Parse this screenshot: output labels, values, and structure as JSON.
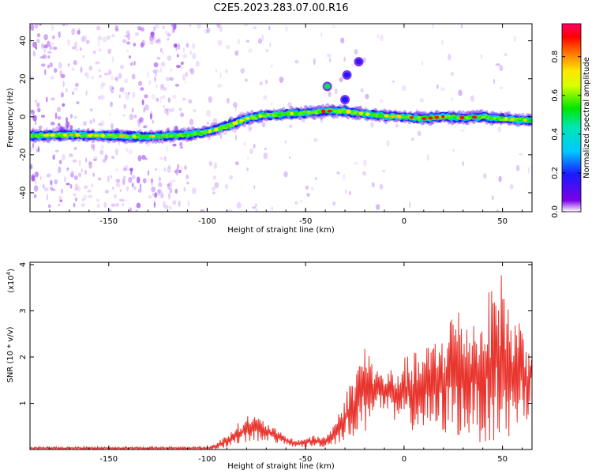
{
  "title": "C2E5.2023.283.07.00.R16",
  "chart_data": [
    {
      "type": "heatmap",
      "xlabel": "Height of straight line (km)",
      "ylabel": "Frequency (Hz)",
      "xlim": [
        -190,
        65
      ],
      "ylim": [
        -50,
        49
      ],
      "xticks": [
        -150,
        -100,
        -50,
        0,
        50
      ],
      "yticks": [
        -40,
        -20,
        0,
        20,
        40
      ],
      "colorbar": {
        "label": "Normalized spectral amplitude",
        "range": [
          0,
          0.97
        ],
        "ticks": [
          "0.0",
          "0.2",
          "0.4",
          "0.6",
          "0.8"
        ],
        "tick_values": [
          0,
          0.2,
          0.4,
          0.6,
          0.8
        ]
      },
      "ridge": [
        {
          "x": -190,
          "y": -10
        },
        {
          "x": -170,
          "y": -9.5
        },
        {
          "x": -150,
          "y": -10
        },
        {
          "x": -130,
          "y": -10.5
        },
        {
          "x": -110,
          "y": -9.5
        },
        {
          "x": -100,
          "y": -8
        },
        {
          "x": -90,
          "y": -5
        },
        {
          "x": -80,
          "y": -1
        },
        {
          "x": -70,
          "y": 1
        },
        {
          "x": -60,
          "y": 1.5
        },
        {
          "x": -50,
          "y": 2
        },
        {
          "x": -40,
          "y": 3
        },
        {
          "x": -30,
          "y": 3
        },
        {
          "x": -20,
          "y": 1.5
        },
        {
          "x": -10,
          "y": 0.5
        },
        {
          "x": 0,
          "y": 0
        },
        {
          "x": 10,
          "y": -1
        },
        {
          "x": 20,
          "y": 0
        },
        {
          "x": 30,
          "y": -0.5
        },
        {
          "x": 40,
          "y": 0
        },
        {
          "x": 50,
          "y": -1
        },
        {
          "x": 65,
          "y": -2
        }
      ],
      "isolated_blobs": [
        {
          "x": -39,
          "y": 16,
          "value": 0.5
        },
        {
          "x": -29,
          "y": 22,
          "value": 0.2
        },
        {
          "x": -23,
          "y": 29,
          "value": 0.15
        },
        {
          "x": -30,
          "y": 9,
          "value": 0.2
        }
      ]
    },
    {
      "type": "line",
      "xlabel": "Height of straight line (km)",
      "ylabel": "SNR (10 * v/v)",
      "yscale_label": "(x10",
      "yscale_exp": "4",
      "yscale_close": ")",
      "xlim": [
        -190,
        65
      ],
      "ylim": [
        0,
        4.05
      ],
      "xticks": [
        -150,
        -100,
        -50,
        0,
        50
      ],
      "yticks": [
        1,
        2,
        3,
        4
      ],
      "color": "#e8352e",
      "envelope": [
        {
          "x": -190,
          "lo": 0.0,
          "hi": 0.06
        },
        {
          "x": -100,
          "lo": 0.0,
          "hi": 0.06
        },
        {
          "x": -95,
          "lo": 0.0,
          "hi": 0.15
        },
        {
          "x": -90,
          "lo": 0.05,
          "hi": 0.35
        },
        {
          "x": -85,
          "lo": 0.1,
          "hi": 0.55
        },
        {
          "x": -78,
          "lo": 0.15,
          "hi": 0.8
        },
        {
          "x": -70,
          "lo": 0.2,
          "hi": 0.6
        },
        {
          "x": -62,
          "lo": 0.1,
          "hi": 0.35
        },
        {
          "x": -55,
          "lo": 0.05,
          "hi": 0.2
        },
        {
          "x": -48,
          "lo": 0.05,
          "hi": 0.3
        },
        {
          "x": -40,
          "lo": 0.05,
          "hi": 0.3
        },
        {
          "x": -35,
          "lo": 0.1,
          "hi": 0.6
        },
        {
          "x": -30,
          "lo": 0.2,
          "hi": 1.2
        },
        {
          "x": -25,
          "lo": 0.3,
          "hi": 1.7
        },
        {
          "x": -20,
          "lo": 0.3,
          "hi": 2.4
        },
        {
          "x": -15,
          "lo": 0.9,
          "hi": 1.8
        },
        {
          "x": -10,
          "lo": 0.8,
          "hi": 1.7
        },
        {
          "x": -5,
          "lo": 0.5,
          "hi": 1.8
        },
        {
          "x": 0,
          "lo": 0.5,
          "hi": 2.0
        },
        {
          "x": 5,
          "lo": 0.4,
          "hi": 2.1
        },
        {
          "x": 10,
          "lo": 0.4,
          "hi": 2.2
        },
        {
          "x": 15,
          "lo": 0.3,
          "hi": 2.4
        },
        {
          "x": 20,
          "lo": 0.3,
          "hi": 2.6
        },
        {
          "x": 25,
          "lo": 0.3,
          "hi": 3.2
        },
        {
          "x": 30,
          "lo": 0.2,
          "hi": 3.0
        },
        {
          "x": 35,
          "lo": 0.3,
          "hi": 2.9
        },
        {
          "x": 40,
          "lo": 0.1,
          "hi": 3.0
        },
        {
          "x": 45,
          "lo": 0.1,
          "hi": 3.7
        },
        {
          "x": 47,
          "lo": 0.1,
          "hi": 4.05
        },
        {
          "x": 50,
          "lo": 0.05,
          "hi": 3.8
        },
        {
          "x": 55,
          "lo": 0.1,
          "hi": 3.0
        },
        {
          "x": 60,
          "lo": 0.9,
          "hi": 2.8
        },
        {
          "x": 63,
          "lo": 0.2,
          "hi": 2.6
        },
        {
          "x": 65,
          "lo": 1.4,
          "hi": 2.2
        }
      ]
    }
  ]
}
